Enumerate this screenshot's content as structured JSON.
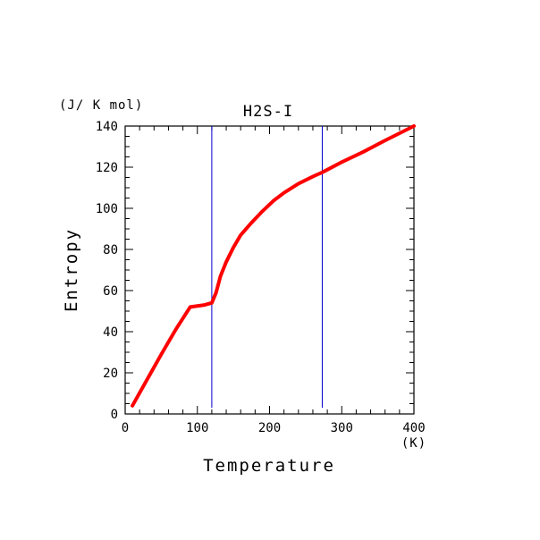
{
  "chart_data": {
    "type": "line",
    "title": "H2S-I",
    "xlabel": "Temperature",
    "ylabel": "Entropy",
    "x_unit": "(K)",
    "y_unit": "(J/ K mol)",
    "xlim": [
      0,
      400
    ],
    "ylim": [
      0,
      140
    ],
    "x_ticks": [
      0,
      100,
      200,
      300,
      400
    ],
    "y_ticks": [
      0,
      20,
      40,
      60,
      80,
      100,
      120,
      140
    ],
    "x_tick_labels": [
      "0",
      "100",
      "200",
      "300",
      "400"
    ],
    "y_tick_labels": [
      "0",
      "20",
      "40",
      "60",
      "80",
      "100",
      "120",
      "140"
    ],
    "grid": false,
    "series": [
      {
        "color": "#ff0000",
        "x": [
          10,
          30,
          50,
          70,
          90,
          110,
          120,
          126,
          132,
          140,
          150,
          160,
          175,
          190,
          205,
          220,
          240,
          260,
          273,
          300,
          330,
          360,
          400
        ],
        "y": [
          4,
          16.5,
          29,
          41,
          52,
          53,
          54,
          59,
          67,
          74,
          81,
          87,
          93,
          98.5,
          103.5,
          107.5,
          112,
          115.5,
          117.5,
          122.5,
          127.5,
          133,
          140
        ]
      }
    ],
    "vertical_lines": [
      {
        "x": 120,
        "y_range": [
          3,
          140
        ],
        "color": "#0000cc"
      },
      {
        "x": 273,
        "y_range": [
          3,
          140
        ],
        "color": "#0000cc"
      }
    ]
  }
}
